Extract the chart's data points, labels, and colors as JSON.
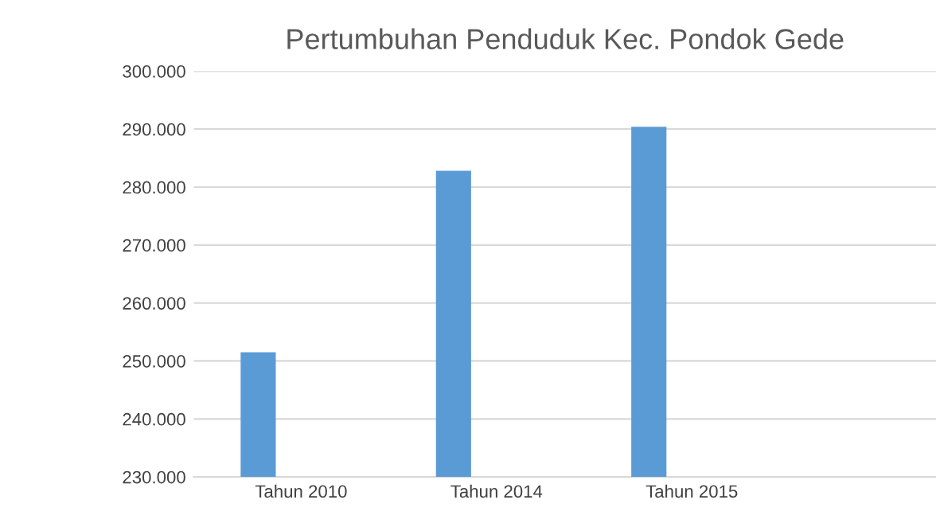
{
  "chart_data": {
    "type": "bar",
    "title": "Pertumbuhan Penduduk Kec. Pondok Gede",
    "categories": [
      "Tahun 2010",
      "Tahun 2014",
      "Tahun 2015"
    ],
    "series": [
      {
        "color": "#5b9bd5",
        "values": [
          251500,
          282800,
          290400
        ]
      }
    ],
    "ylim": [
      230000,
      300000
    ],
    "yticks": [
      {
        "value": 230000,
        "label": "230.000"
      },
      {
        "value": 240000,
        "label": "240.000"
      },
      {
        "value": 250000,
        "label": "250.000"
      },
      {
        "value": 260000,
        "label": "260.000"
      },
      {
        "value": 270000,
        "label": "270.000"
      },
      {
        "value": 280000,
        "label": "280.000"
      },
      {
        "value": 290000,
        "label": "290.000"
      },
      {
        "value": 300000,
        "label": "300.000"
      }
    ],
    "grid": "y",
    "legend": false
  }
}
